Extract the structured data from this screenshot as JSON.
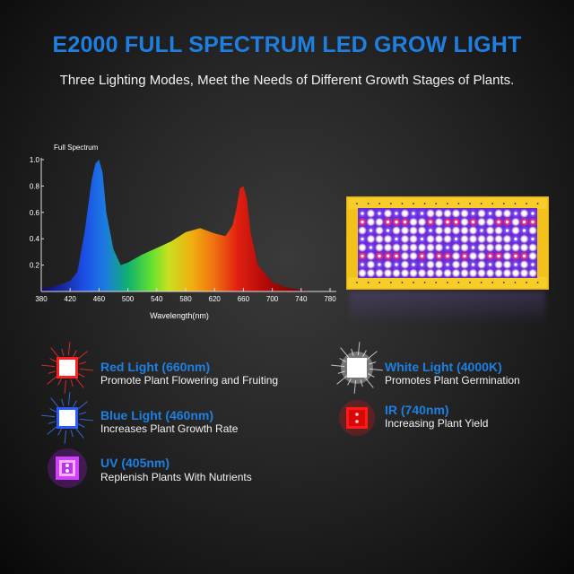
{
  "header": {
    "title": "E2000 FULL SPECTRUM LED GROW LIGHT",
    "subtitle": "Three Lighting Modes, Meet the Needs of Different Growth Stages of Plants."
  },
  "chart_data": {
    "type": "area",
    "title": "Full Spectrum",
    "xlabel": "Wavelength(nm)",
    "ylabel": "",
    "xlim": [
      380,
      780
    ],
    "ylim": [
      0,
      1.0
    ],
    "x_ticks": [
      380,
      420,
      460,
      500,
      540,
      580,
      620,
      660,
      700,
      740,
      780
    ],
    "y_ticks": [
      "0.2",
      "0.4",
      "0.6",
      "0.8",
      "1.0"
    ],
    "grid": false,
    "legend": "none",
    "x": [
      380,
      400,
      420,
      430,
      440,
      450,
      455,
      460,
      465,
      470,
      480,
      490,
      500,
      520,
      540,
      560,
      580,
      600,
      620,
      635,
      645,
      650,
      655,
      660,
      665,
      670,
      680,
      700,
      720,
      740,
      760,
      780
    ],
    "values": [
      0.02,
      0.04,
      0.08,
      0.15,
      0.45,
      0.85,
      0.97,
      1.0,
      0.9,
      0.6,
      0.32,
      0.2,
      0.22,
      0.28,
      0.33,
      0.38,
      0.45,
      0.48,
      0.44,
      0.42,
      0.5,
      0.62,
      0.78,
      0.8,
      0.7,
      0.45,
      0.2,
      0.07,
      0.03,
      0.01,
      0.0,
      0.0
    ]
  },
  "features": [
    {
      "id": "red",
      "name": "Red Light (660nm)",
      "desc": "Promote Plant Flowering and Fruiting",
      "color": "#ff2020"
    },
    {
      "id": "blue",
      "name": "Blue Light (460nm)",
      "desc": "Increases Plant Growth Rate",
      "color": "#2a6bff"
    },
    {
      "id": "uv",
      "name": "UV (405nm)",
      "desc": "Replenish Plants With Nutrients",
      "color": "#d030ff"
    },
    {
      "id": "white",
      "name": "White Light (4000K)",
      "desc": "Promotes Plant Germination",
      "color": "#ffffff"
    },
    {
      "id": "ir",
      "name": "IR (740nm)",
      "desc": "Increasing Plant Yield",
      "color": "#ff1010"
    }
  ],
  "colors": {
    "title": "#1f7fe0",
    "panel_frame": "#f3c21a"
  }
}
